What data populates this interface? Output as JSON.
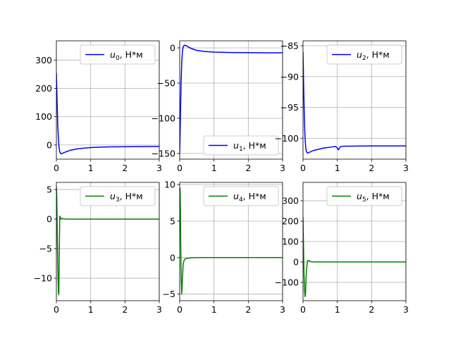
{
  "chart_data": [
    {
      "type": "line",
      "legend": {
        "symbol": "u",
        "sub": "0",
        "unit": ", Н*м",
        "loc": "upper right"
      },
      "color": "#0000ff",
      "grid": true,
      "xlim": [
        0,
        3
      ],
      "ylim": [
        -50,
        368
      ],
      "xticks": [
        0,
        1,
        2,
        3
      ],
      "yticks": [
        0,
        100,
        200,
        300
      ],
      "xticklabels": [
        "0",
        "1",
        "2",
        "3"
      ],
      "yticklabels": [
        "0",
        "100",
        "200",
        "300"
      ],
      "x": [
        0,
        0.02,
        0.04,
        0.06,
        0.08,
        0.1,
        0.13,
        0.16,
        0.2,
        0.3,
        0.4,
        0.6,
        0.8,
        1.0,
        1.3,
        1.6,
        2.0,
        2.5,
        3.0
      ],
      "y": [
        255,
        160,
        70,
        20,
        -10,
        -25,
        -31,
        -30,
        -28,
        -23,
        -19,
        -14,
        -11,
        -9,
        -7.5,
        -6.5,
        -6,
        -5.5,
        -5.2
      ]
    },
    {
      "type": "line",
      "legend": {
        "symbol": "u",
        "sub": "1",
        "unit": ", Н*м",
        "loc": "lower right"
      },
      "color": "#0000ff",
      "grid": true,
      "xlim": [
        0,
        3
      ],
      "ylim": [
        -158,
        10
      ],
      "xticks": [
        0,
        1,
        2,
        3
      ],
      "yticks": [
        -150,
        -100,
        -50,
        0
      ],
      "xticklabels": [
        "0",
        "1",
        "2",
        "3"
      ],
      "yticklabels": [
        "−150",
        "−100",
        "−50",
        "0"
      ],
      "x": [
        0,
        0.02,
        0.04,
        0.06,
        0.08,
        0.1,
        0.12,
        0.15,
        0.2,
        0.3,
        0.4,
        0.5,
        0.7,
        1.0,
        1.5,
        2.0,
        2.5,
        3.0
      ],
      "y": [
        -150,
        -100,
        -50,
        -20,
        -5,
        1,
        3,
        3.8,
        2.8,
        0,
        -2,
        -3.5,
        -5,
        -6,
        -6.6,
        -6.8,
        -7,
        -7
      ]
    },
    {
      "type": "line",
      "legend": {
        "symbol": "u",
        "sub": "2",
        "unit": ", Н*м",
        "loc": "upper right"
      },
      "color": "#0000ff",
      "grid": true,
      "xlim": [
        0,
        3
      ],
      "ylim": [
        -103.4,
        -84.2
      ],
      "xticks": [
        0,
        1,
        2,
        3
      ],
      "yticks": [
        -100,
        -95,
        -90,
        -85
      ],
      "xticklabels": [
        "0",
        "1",
        "2",
        "3"
      ],
      "yticklabels": [
        "−100",
        "−95",
        "−90",
        "−85"
      ],
      "x": [
        0,
        0.02,
        0.04,
        0.06,
        0.08,
        0.1,
        0.13,
        0.17,
        0.22,
        0.3,
        0.45,
        0.6,
        0.8,
        0.95,
        1.0,
        1.03,
        1.06,
        1.1,
        1.2,
        1.5,
        2.0,
        2.5,
        3.0
      ],
      "y": [
        -86,
        -92,
        -97,
        -100,
        -101.6,
        -102.2,
        -102.4,
        -102.35,
        -102.2,
        -102.0,
        -101.8,
        -101.6,
        -101.45,
        -101.35,
        -101.6,
        -101.9,
        -101.6,
        -101.35,
        -101.3,
        -101.28,
        -101.25,
        -101.25,
        -101.25
      ]
    },
    {
      "type": "line",
      "legend": {
        "symbol": "u",
        "sub": "3",
        "unit": ", Н*м",
        "loc": "upper right"
      },
      "color": "#008000",
      "grid": true,
      "xlim": [
        0,
        3
      ],
      "ylim": [
        -13.8,
        6.2
      ],
      "xticks": [
        0,
        1,
        2,
        3
      ],
      "yticks": [
        -10,
        -5,
        0,
        5
      ],
      "xticklabels": [
        "0",
        "1",
        "2",
        "3"
      ],
      "yticklabels": [
        "−10",
        "−5",
        "0",
        "5"
      ],
      "x": [
        0,
        0.01,
        0.02,
        0.03,
        0.045,
        0.06,
        0.07,
        0.08,
        0.09,
        0.1,
        0.11,
        0.13,
        0.16,
        0.2,
        0.3,
        0.5,
        1.0,
        2.0,
        3.0
      ],
      "y": [
        5.5,
        4,
        1,
        -4,
        -9,
        -12.5,
        -12.8,
        -9,
        -3,
        0.5,
        0.4,
        0,
        0.1,
        0.05,
        0,
        0,
        0,
        0,
        0
      ]
    },
    {
      "type": "line",
      "legend": {
        "symbol": "u",
        "sub": "4",
        "unit": ", Н*м",
        "loc": "upper right"
      },
      "color": "#008000",
      "grid": true,
      "xlim": [
        0,
        3
      ],
      "ylim": [
        -5.9,
        10.3
      ],
      "xticks": [
        0,
        1,
        2,
        3
      ],
      "yticks": [
        -5,
        0,
        5,
        10
      ],
      "xticklabels": [
        "0",
        "1",
        "2",
        "3"
      ],
      "yticklabels": [
        "−5",
        "0",
        "5",
        "10"
      ],
      "x": [
        0,
        0.01,
        0.02,
        0.03,
        0.045,
        0.06,
        0.08,
        0.1,
        0.12,
        0.15,
        0.2,
        0.3,
        0.5,
        1.0,
        2.0,
        3.0
      ],
      "y": [
        9.4,
        9.5,
        7,
        2,
        -3,
        -5,
        -3,
        -1,
        -0.5,
        -0.2,
        -0.1,
        -0.05,
        0,
        0,
        0,
        0
      ]
    },
    {
      "type": "line",
      "legend": {
        "symbol": "u",
        "sub": "5",
        "unit": ", Н*м",
        "loc": "upper right"
      },
      "color": "#008000",
      "grid": true,
      "xlim": [
        0,
        3
      ],
      "ylim": [
        -190,
        390
      ],
      "xticks": [
        0,
        1,
        2,
        3
      ],
      "yticks": [
        -100,
        0,
        100,
        200,
        300
      ],
      "xticklabels": [
        "0",
        "1",
        "2",
        "3"
      ],
      "yticklabels": [
        "−100",
        "0",
        "100",
        "200",
        "300"
      ],
      "x": [
        0,
        0.01,
        0.02,
        0.03,
        0.045,
        0.06,
        0.07,
        0.08,
        0.1,
        0.13,
        0.16,
        0.2,
        0.3,
        0.5,
        1.0,
        2.0,
        3.0
      ],
      "y": [
        220,
        120,
        20,
        -60,
        -140,
        -170,
        -165,
        -120,
        -40,
        5,
        8,
        3,
        0,
        0,
        0,
        0,
        0
      ]
    }
  ]
}
